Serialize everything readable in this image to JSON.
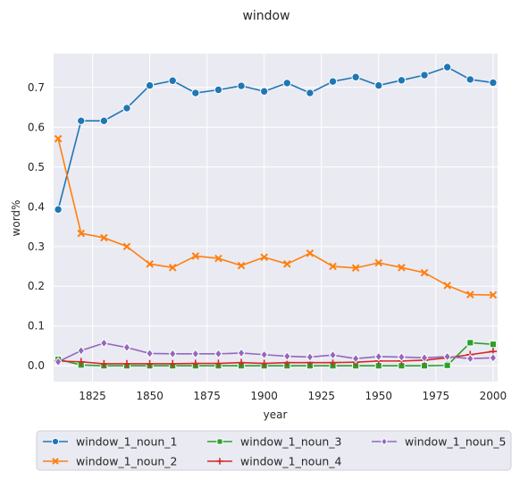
{
  "chart_data": {
    "type": "line",
    "title": "window",
    "xlabel": "year",
    "ylabel": "word%",
    "xlim": [
      1808,
      2002
    ],
    "ylim": [
      -0.04,
      0.785
    ],
    "xticks": [
      1825,
      1850,
      1875,
      1900,
      1925,
      1950,
      1975,
      2000
    ],
    "yticks": [
      0.0,
      0.1,
      0.2,
      0.3,
      0.4,
      0.5,
      0.6,
      0.7
    ],
    "ytick_labels": [
      "0.0",
      "0.1",
      "0.2",
      "0.3",
      "0.4",
      "0.5",
      "0.6",
      "0.7"
    ],
    "grid": true,
    "legend_position": "bottom",
    "x": [
      1810,
      1820,
      1830,
      1840,
      1850,
      1860,
      1870,
      1880,
      1890,
      1900,
      1910,
      1920,
      1930,
      1940,
      1950,
      1960,
      1970,
      1980,
      1990,
      2000
    ],
    "series": [
      {
        "name": "window_1_noun_1",
        "color": "#1f77b4",
        "marker": "circle",
        "values": [
          0.393,
          0.616,
          0.616,
          0.648,
          0.705,
          0.717,
          0.686,
          0.694,
          0.704,
          0.69,
          0.711,
          0.686,
          0.715,
          0.726,
          0.705,
          0.718,
          0.731,
          0.751,
          0.72,
          0.712
        ]
      },
      {
        "name": "window_1_noun_2",
        "color": "#ff7f0e",
        "marker": "x",
        "values": [
          0.571,
          0.333,
          0.322,
          0.3,
          0.256,
          0.247,
          0.276,
          0.27,
          0.252,
          0.273,
          0.256,
          0.283,
          0.25,
          0.246,
          0.259,
          0.247,
          0.234,
          0.202,
          0.179,
          0.178
        ]
      },
      {
        "name": "window_1_noun_3",
        "color": "#2ca02c",
        "marker": "square",
        "values": [
          0.016,
          0.002,
          0.0,
          0.0,
          0.0,
          0.0,
          0.0,
          0.0,
          0.0,
          0.0,
          0.0,
          0.0,
          0.0,
          0.0,
          0.0,
          0.0,
          0.0,
          0.001,
          0.058,
          0.054
        ]
      },
      {
        "name": "window_1_noun_4",
        "color": "#d62728",
        "marker": "plus",
        "values": [
          0.012,
          0.01,
          0.005,
          0.005,
          0.005,
          0.005,
          0.006,
          0.006,
          0.008,
          0.006,
          0.008,
          0.008,
          0.008,
          0.009,
          0.012,
          0.012,
          0.014,
          0.02,
          0.028,
          0.036
        ]
      },
      {
        "name": "window_1_noun_5",
        "color": "#9467bd",
        "marker": "diamond",
        "values": [
          0.01,
          0.038,
          0.057,
          0.046,
          0.031,
          0.03,
          0.03,
          0.03,
          0.032,
          0.028,
          0.024,
          0.022,
          0.027,
          0.018,
          0.023,
          0.022,
          0.02,
          0.023,
          0.018,
          0.02
        ]
      }
    ]
  }
}
